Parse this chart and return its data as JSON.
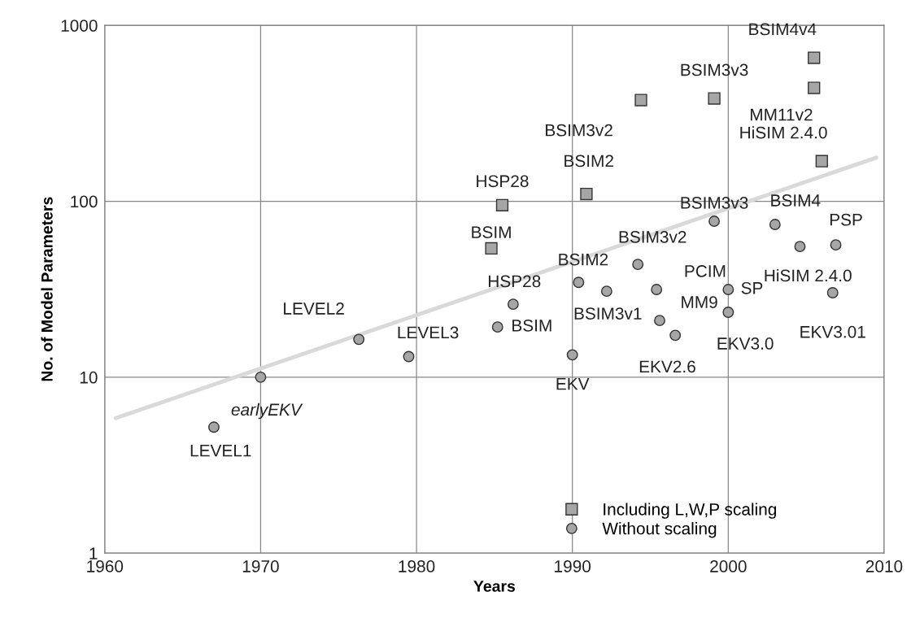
{
  "chart_data": {
    "type": "scatter",
    "xlabel": "Years",
    "ylabel": "No. of Model Parameters",
    "log": "y",
    "grid": true,
    "legend": "bottom",
    "xlim": [
      1960,
      2010
    ],
    "xticks": [
      1960,
      1970,
      1980,
      1990,
      2000,
      2010
    ],
    "ylim": [
      1,
      1000
    ],
    "yticks": [
      1,
      10,
      100,
      1000
    ],
    "series": [
      {
        "name": "Including L,W,P scaling",
        "marker": "square",
        "color": "#a6a6a6",
        "x": [
          1985.5,
          1984.8,
          1990.9,
          1994.4,
          1999.1,
          2005.5,
          2005.5,
          2006.0
        ],
        "values": [
          95,
          54,
          110,
          376,
          384,
          654,
          441,
          169
        ]
      },
      {
        "name": "Without scaling",
        "marker": "circle",
        "color": "#a6a6a6",
        "x": [
          1967.0,
          1970.0,
          1976.3,
          1979.5,
          1985.2,
          1986.2,
          1990.4,
          1992.2,
          1994.2,
          1995.4,
          1995.6,
          1996.6,
          1990.0,
          1999.1,
          2000.0,
          2000.0,
          2003.0,
          2004.6,
          2006.9,
          2006.7
        ],
        "values": [
          5.2,
          10,
          16.4,
          13.1,
          19.3,
          26,
          34.6,
          30.8,
          43.8,
          31.5,
          21,
          17.3,
          13.4,
          77,
          31.5,
          23.4,
          73.8,
          55.3,
          56.5,
          30.2
        ]
      },
      {
        "type": "line",
        "color": "#d9d9d9",
        "x": [
          1960.7,
          2009.5
        ],
        "values": [
          5.85,
          177
        ]
      }
    ],
    "annotations": [
      {
        "text": "HSP28",
        "x": 1985.5,
        "y": 95
      },
      {
        "text": "BSIM",
        "x": 1984.8,
        "y": 54
      },
      {
        "text": "BSIM2",
        "x": 1990.9,
        "y": 110
      },
      {
        "text": "BSIM3v2",
        "x": 1994.4,
        "y": 376
      },
      {
        "text": "BSIM3v3",
        "x": 1999.1,
        "y": 384
      },
      {
        "text": "BSIM4v4",
        "x": 2005.5,
        "y": 654
      },
      {
        "text": "MM11v2",
        "x": 2005.5,
        "y": 441
      },
      {
        "text": "HiSIM 2.4.0",
        "x": 2006.0,
        "y": 169
      },
      {
        "text": "LEVEL1",
        "x": 1967.0,
        "y": 5.2
      },
      {
        "text": "earlyEKV",
        "x": 1970.0,
        "y": 10
      },
      {
        "text": "LEVEL2",
        "x": 1976.3,
        "y": 16.4
      },
      {
        "text": "LEVEL3",
        "x": 1979.5,
        "y": 13.1
      },
      {
        "text": "BSIM",
        "x": 1985.2,
        "y": 19.3
      },
      {
        "text": "HSP28",
        "x": 1986.2,
        "y": 26
      },
      {
        "text": "BSIM2",
        "x": 1990.4,
        "y": 34.6
      },
      {
        "text": "BSIM3v1",
        "x": 1992.2,
        "y": 30.8
      },
      {
        "text": "BSIM3v2",
        "x": 1994.2,
        "y": 43.8
      },
      {
        "text": "PCIM",
        "x": 1995.4,
        "y": 31.5
      },
      {
        "text": "MM9",
        "x": 1995.6,
        "y": 21
      },
      {
        "text": "EKV2.6",
        "x": 1996.6,
        "y": 17.3
      },
      {
        "text": "EKV",
        "x": 1990.0,
        "y": 13.4
      },
      {
        "text": "BSIM3v3",
        "x": 1999.1,
        "y": 77
      },
      {
        "text": "SP",
        "x": 2000.0,
        "y": 31.5
      },
      {
        "text": "EKV3.0",
        "x": 2000.0,
        "y": 23.4
      },
      {
        "text": "BSIM4",
        "x": 2003.0,
        "y": 73.8
      },
      {
        "text": "HiSIM 2.4.0",
        "x": 2004.6,
        "y": 55.3
      },
      {
        "text": "PSP",
        "x": 2006.9,
        "y": 56.5
      },
      {
        "text": "EKV3.01",
        "x": 2006.7,
        "y": 30.2
      }
    ]
  }
}
